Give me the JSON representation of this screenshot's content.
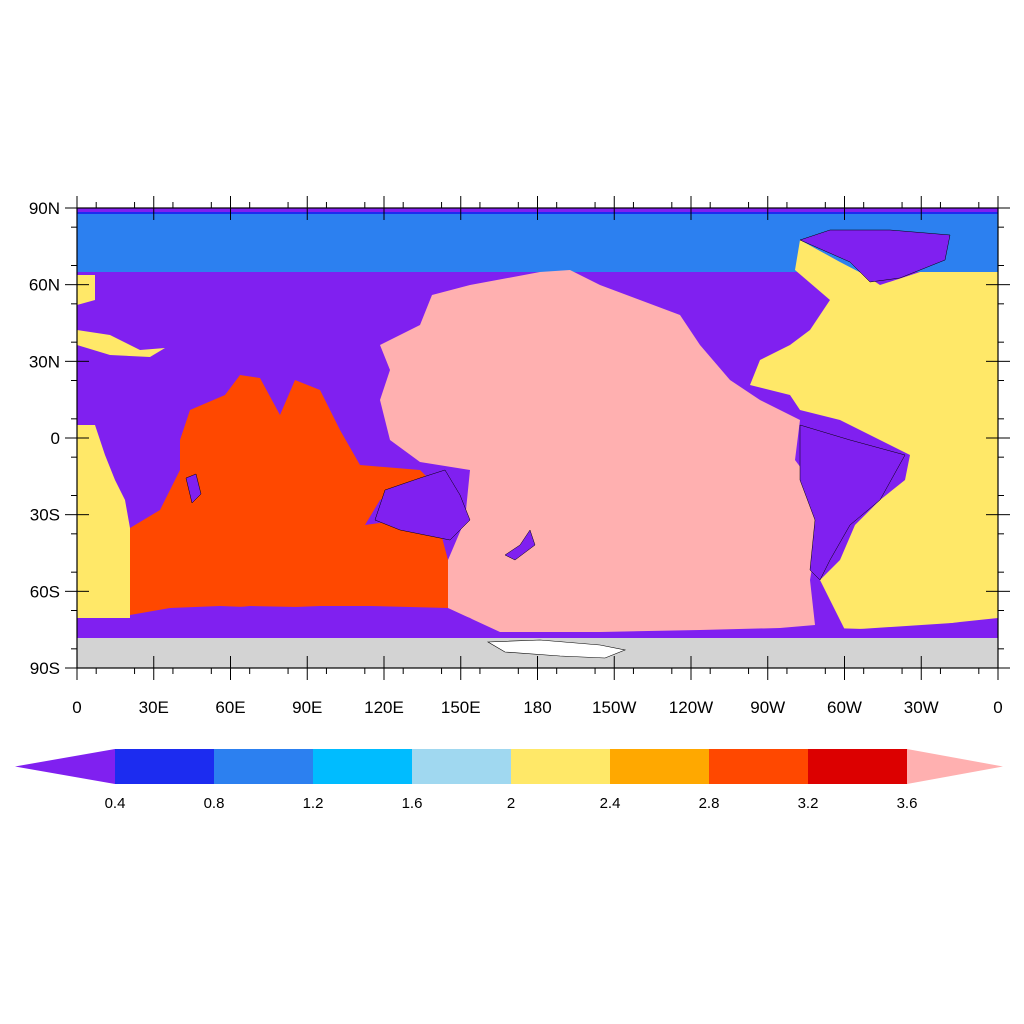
{
  "map": {
    "lat_labels": [
      "90N",
      "60N",
      "30N",
      "0",
      "30S",
      "60S",
      "90S"
    ],
    "lon_labels": [
      "0",
      "30E",
      "60E",
      "90E",
      "120E",
      "150E",
      "180",
      "150W",
      "120W",
      "90W",
      "60W",
      "30W",
      "0"
    ],
    "regions": {
      "land": "#8020F0",
      "arctic_ocean": "#2C80F0",
      "atlantic_ocean": "#FFE868",
      "indian_ocean": "#FF4800",
      "pacific_ocean": "#FFB0B0",
      "antarctica": "#D3D3D3"
    }
  },
  "colorbar": {
    "below_color": "#8020F0",
    "above_color": "#FFB0B0",
    "colors": [
      "#1C2CF0",
      "#2C80F0",
      "#00BCFF",
      "#A0D8F0",
      "#FFE868",
      "#FFA800",
      "#FF4800",
      "#DC0000"
    ],
    "labels": [
      "0.4",
      "0.8",
      "1.2",
      "1.6",
      "2",
      "2.4",
      "2.8",
      "3.2",
      "3.6"
    ]
  }
}
